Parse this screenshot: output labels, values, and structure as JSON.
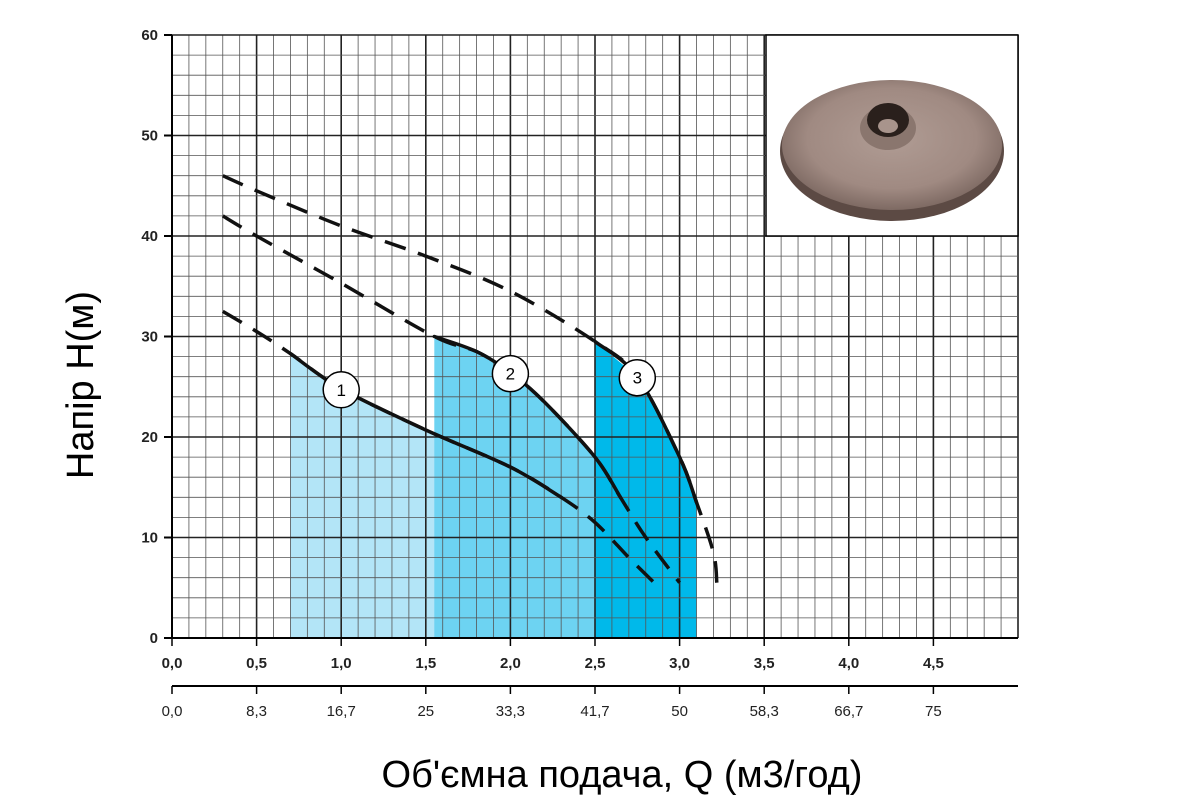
{
  "chart_data": {
    "type": "line",
    "title": "",
    "ylabel": "Напір Н(м)",
    "xlabel": "Об'ємна подача, Q (м3/год)",
    "ylim": [
      0,
      60
    ],
    "xlim": [
      0,
      5
    ],
    "grid": true,
    "y_ticks": [
      "0",
      "10",
      "20",
      "30",
      "40",
      "50",
      "60"
    ],
    "x_ticks_primary": [
      "0,0",
      "0,5",
      "1,0",
      "1,5",
      "2,0",
      "2,5",
      "3,0",
      "3,5",
      "4,0",
      "4,5"
    ],
    "x_ticks_secondary": [
      "0,0",
      "8,3",
      "16,7",
      "25",
      "33,3",
      "41,7",
      "50",
      "58,3",
      "66,7",
      "75"
    ],
    "series": [
      {
        "name": "1",
        "color": "#b3e5f7",
        "work_range": [
          0.7,
          2.3
        ],
        "points": [
          [
            0.3,
            32.5
          ],
          [
            0.5,
            30.5
          ],
          [
            0.7,
            28.3
          ],
          [
            1.0,
            24.8
          ],
          [
            1.5,
            20.7
          ],
          [
            2.0,
            17.0
          ],
          [
            2.3,
            14.0
          ],
          [
            2.5,
            11.5
          ],
          [
            2.7,
            8.0
          ],
          [
            2.85,
            5.5
          ]
        ]
      },
      {
        "name": "2",
        "color": "#6dd3f2",
        "work_range": [
          1.55,
          2.65
        ],
        "points": [
          [
            0.3,
            42.0
          ],
          [
            0.5,
            40.0
          ],
          [
            1.0,
            35.3
          ],
          [
            1.55,
            30.0
          ],
          [
            1.8,
            28.5
          ],
          [
            2.0,
            26.4
          ],
          [
            2.2,
            23.5
          ],
          [
            2.5,
            18.0
          ],
          [
            2.65,
            14.0
          ],
          [
            2.8,
            10.0
          ],
          [
            3.0,
            5.5
          ]
        ]
      },
      {
        "name": "3",
        "color": "#00b9ea",
        "work_range": [
          2.5,
          3.1
        ],
        "points": [
          [
            0.3,
            46.0
          ],
          [
            0.5,
            44.5
          ],
          [
            1.0,
            41.0
          ],
          [
            1.5,
            38.0
          ],
          [
            2.0,
            34.5
          ],
          [
            2.5,
            29.5
          ],
          [
            2.75,
            26.0
          ],
          [
            3.0,
            18.0
          ],
          [
            3.1,
            13.5
          ],
          [
            3.2,
            8.5
          ],
          [
            3.22,
            5.5
          ]
        ]
      }
    ]
  },
  "image": {
    "icon": "impeller-photo"
  }
}
